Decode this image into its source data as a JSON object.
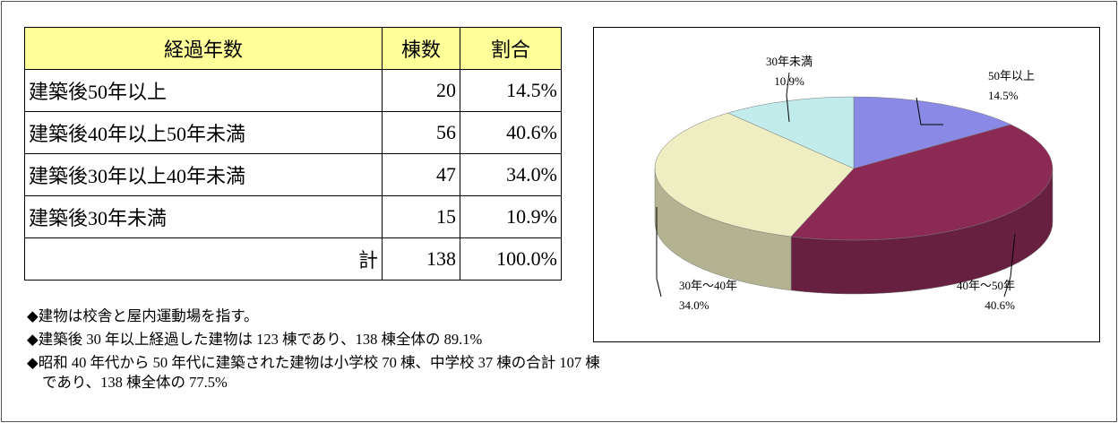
{
  "table": {
    "header": [
      "経過年数",
      "棟数",
      "割合"
    ],
    "rows": [
      [
        "建築後50年以上",
        "20",
        "14.5%"
      ],
      [
        "建築後40年以上50年未満",
        "56",
        "40.6%"
      ],
      [
        "建築後30年以上40年未満",
        "47",
        "34.0%"
      ],
      [
        "建築後30年未満",
        "15",
        "10.9%"
      ]
    ],
    "total": [
      "計",
      "138",
      "100.0%"
    ]
  },
  "notes": [
    "◆建物は校舎と屋内運動場を指す。",
    "◆建築後 30 年以上経過した建物は 123 棟であり、138 棟全体の 89.1%",
    "◆昭和 40 年代から 50 年代に建築された建物は小学校 70 棟、中学校 37 棟の合計 107 棟であり、138 棟全体の 77.5%"
  ],
  "chart_data": {
    "type": "pie",
    "categories": [
      "50年以上",
      "40年～50年",
      "30年～40年",
      "30年未満"
    ],
    "values": [
      14.5,
      40.6,
      34.0,
      10.9
    ],
    "value_labels": [
      "14.5%",
      "40.6%",
      "34.0%",
      "10.9%"
    ],
    "colors": [
      "#8a8ae6",
      "#8b2a55",
      "#eeeec2",
      "#c2ecec"
    ]
  }
}
